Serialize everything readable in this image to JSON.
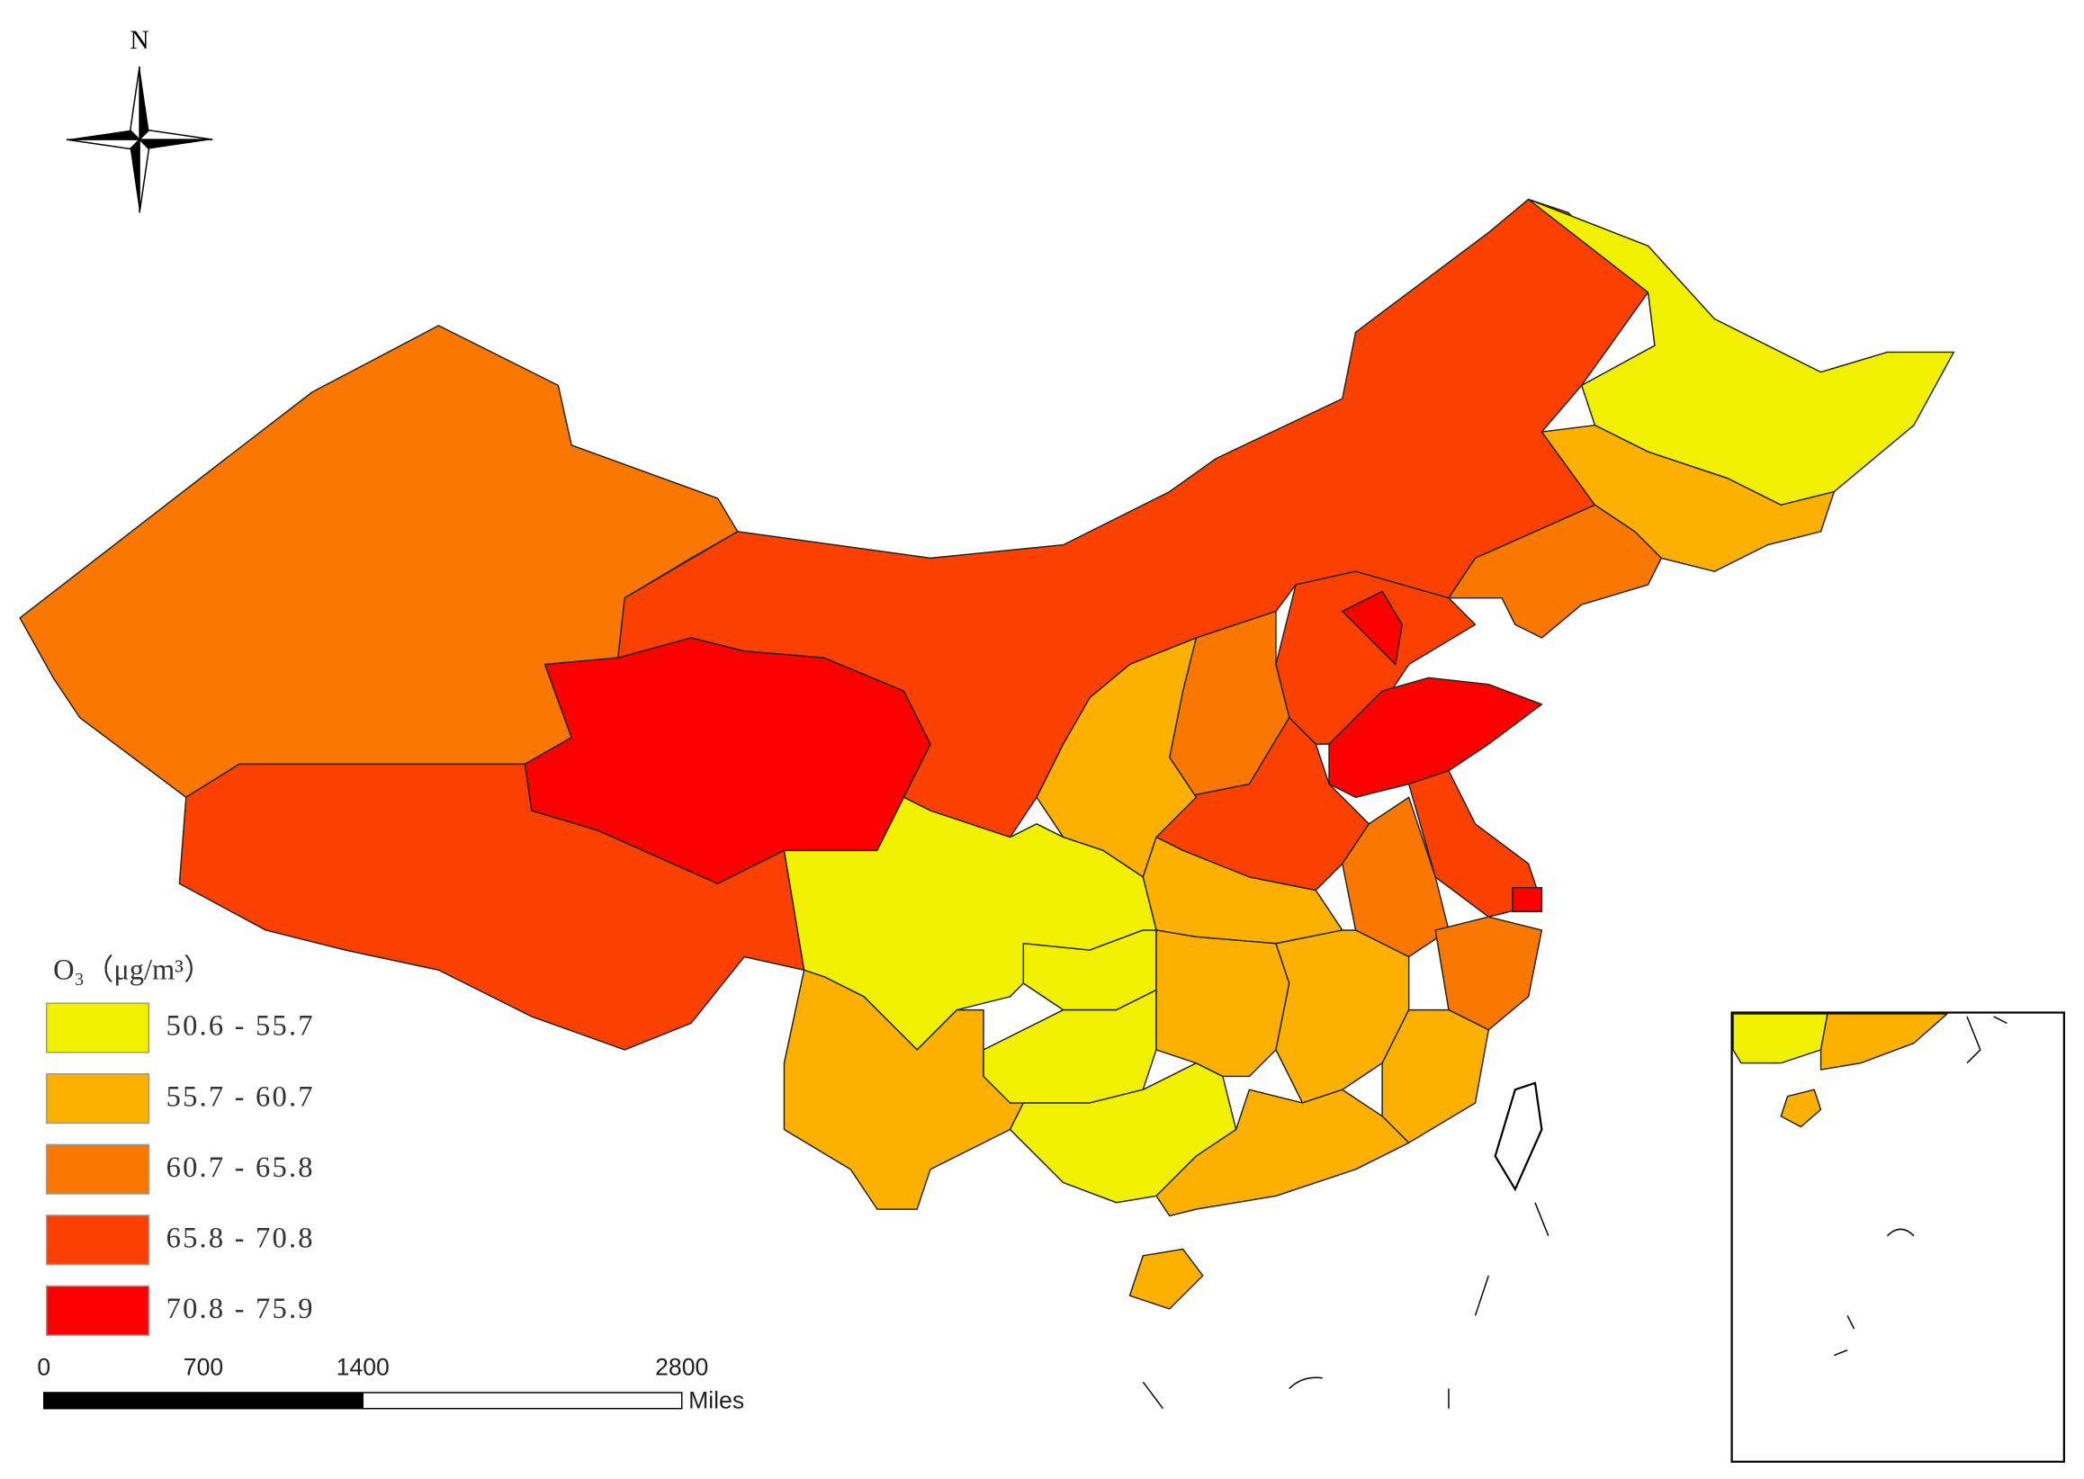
{
  "north_label": "N",
  "legend": {
    "title": "O₃（μg/m³）",
    "classes": [
      {
        "label": "50.6 - 55.7",
        "color": "#f0f000"
      },
      {
        "label": "55.7 - 60.7",
        "color": "#fcb000"
      },
      {
        "label": "60.7 - 65.8",
        "color": "#fa7800"
      },
      {
        "label": "65.8 - 70.8",
        "color": "#fc4000"
      },
      {
        "label": "70.8 - 75.9",
        "color": "#fc0000"
      }
    ]
  },
  "scale_bar": {
    "ticks": [
      0,
      700,
      1400,
      2800
    ],
    "unit": "Miles"
  }
}
